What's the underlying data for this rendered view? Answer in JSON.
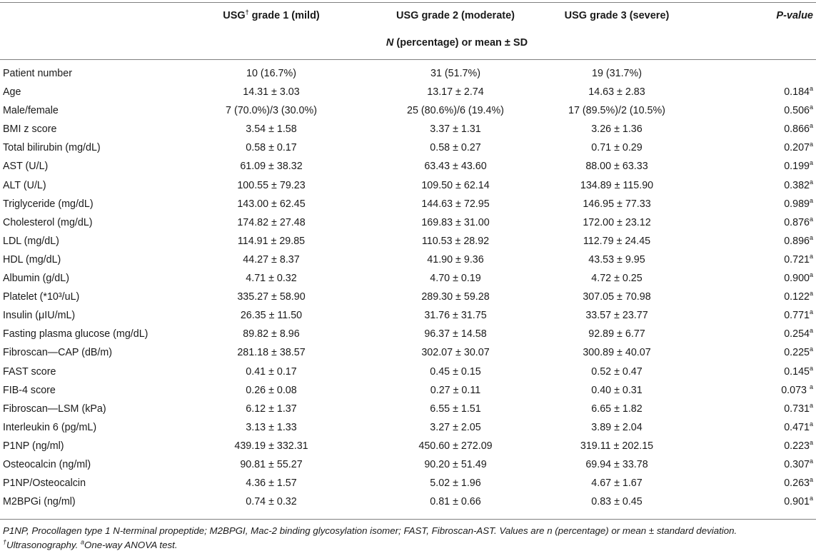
{
  "header": {
    "col1": "",
    "col2_prefix": "USG",
    "col2_dagger": "†",
    "col2_suffix": " grade 1 (mild)",
    "col3": "USG grade 2 (moderate)",
    "col4": "USG grade 3 (severe)",
    "col5": "P-value",
    "subheader_n": "N",
    "subheader_rest": " (percentage) or mean ± SD"
  },
  "rows": [
    {
      "label": "Patient number",
      "g1": "10 (16.7%)",
      "g2": "31 (51.7%)",
      "g3": "19 (31.7%)",
      "p": "",
      "sup": ""
    },
    {
      "label": "Age",
      "g1": "14.31 ± 3.03",
      "g2": "13.17 ± 2.74",
      "g3": "14.63 ± 2.83",
      "p": "0.184",
      "sup": "a"
    },
    {
      "label": "Male/female",
      "g1": "7 (70.0%)/3 (30.0%)",
      "g2": "25 (80.6%)/6 (19.4%)",
      "g3": "17 (89.5%)/2 (10.5%)",
      "p": "0.506",
      "sup": "a"
    },
    {
      "label": "BMI z score",
      "g1": "3.54 ± 1.58",
      "g2": "3.37 ± 1.31",
      "g3": "3.26 ± 1.36",
      "p": "0.866",
      "sup": "a"
    },
    {
      "label": "Total bilirubin (mg/dL)",
      "g1": "0.58 ± 0.17",
      "g2": "0.58 ± 0.27",
      "g3": "0.71 ± 0.29",
      "p": "0.207",
      "sup": "a"
    },
    {
      "label": "AST (U/L)",
      "g1": "61.09 ± 38.32",
      "g2": "63.43 ± 43.60",
      "g3": "88.00 ± 63.33",
      "p": "0.199",
      "sup": "a"
    },
    {
      "label": "ALT (U/L)",
      "g1": "100.55 ± 79.23",
      "g2": "109.50 ± 62.14",
      "g3": "134.89 ± 115.90",
      "p": "0.382",
      "sup": "a"
    },
    {
      "label": "Triglyceride (mg/dL)",
      "g1": "143.00 ± 62.45",
      "g2": "144.63 ± 72.95",
      "g3": "146.95 ± 77.33",
      "p": "0.989",
      "sup": "a"
    },
    {
      "label": "Cholesterol (mg/dL)",
      "g1": "174.82 ± 27.48",
      "g2": "169.83 ± 31.00",
      "g3": "172.00 ± 23.12",
      "p": "0.876",
      "sup": "a"
    },
    {
      "label": "LDL (mg/dL)",
      "g1": "114.91 ± 29.85",
      "g2": "110.53 ± 28.92",
      "g3": "112.79 ± 24.45",
      "p": "0.896",
      "sup": "a"
    },
    {
      "label": "HDL (mg/dL)",
      "g1": "44.27 ± 8.37",
      "g2": "41.90 ± 9.36",
      "g3": "43.53 ± 9.95",
      "p": "0.721",
      "sup": "a"
    },
    {
      "label": "Albumin (g/dL)",
      "g1": "4.71 ± 0.32",
      "g2": "4.70 ± 0.19",
      "g3": "4.72 ± 0.25",
      "p": "0.900",
      "sup": "a"
    },
    {
      "label": "Platelet (*10³/uL)",
      "g1": "335.27 ± 58.90",
      "g2": "289.30 ± 59.28",
      "g3": "307.05 ± 70.98",
      "p": "0.122",
      "sup": "a"
    },
    {
      "label": "Insulin (μIU/mL)",
      "g1": "26.35 ± 11.50",
      "g2": "31.76 ± 31.75",
      "g3": "33.57 ± 23.77",
      "p": "0.771",
      "sup": "a"
    },
    {
      "label": "Fasting plasma glucose (mg/dL)",
      "g1": "89.82 ± 8.96",
      "g2": "96.37 ± 14.58",
      "g3": "92.89 ± 6.77",
      "p": "0.254",
      "sup": "a"
    },
    {
      "label": "Fibroscan—CAP (dB/m)",
      "g1": "281.18 ± 38.57",
      "g2": "302.07 ± 30.07",
      "g3": "300.89 ± 40.07",
      "p": "0.225",
      "sup": "a"
    },
    {
      "label": "FAST score",
      "g1": "0.41 ± 0.17",
      "g2": "0.45 ± 0.15",
      "g3": "0.52 ± 0.47",
      "p": "0.145",
      "sup": "a"
    },
    {
      "label": "FIB-4 score",
      "g1": "0.26 ± 0.08",
      "g2": "0.27 ± 0.11",
      "g3": "0.40 ± 0.31",
      "p": "0.073 ",
      "sup": "a"
    },
    {
      "label": "Fibroscan—LSM (kPa)",
      "g1": "6.12 ± 1.37",
      "g2": "6.55 ± 1.51",
      "g3": "6.65 ± 1.82",
      "p": "0.731",
      "sup": "a"
    },
    {
      "label": "Interleukin 6 (pg/mL)",
      "g1": "3.13 ± 1.33",
      "g2": "3.27 ± 2.05",
      "g3": "3.89 ± 2.04",
      "p": "0.471",
      "sup": "a"
    },
    {
      "label": "P1NP (ng/ml)",
      "g1": "439.19 ± 332.31",
      "g2": "450.60 ± 272.09",
      "g3": "319.11 ± 202.15",
      "p": "0.223",
      "sup": "a"
    },
    {
      "label": "Osteocalcin (ng/ml)",
      "g1": "90.81 ± 55.27",
      "g2": "90.20 ± 51.49",
      "g3": "69.94 ± 33.78",
      "p": "0.307",
      "sup": "a"
    },
    {
      "label": "P1NP/Osteocalcin",
      "g1": "4.36 ± 1.57",
      "g2": "5.02 ± 1.96",
      "g3": "4.67 ± 1.67",
      "p": "0.263",
      "sup": "a"
    },
    {
      "label": "M2BPGi (ng/ml)",
      "g1": "0.74 ± 0.32",
      "g2": "0.81 ± 0.66",
      "g3": "0.83 ± 0.45",
      "p": "0.901",
      "sup": "a"
    }
  ],
  "footnotes": {
    "line1": "P1NP, Procollagen type 1 N-terminal propeptide; M2BPGI, Mac-2 binding glycosylation isomer; FAST, Fibroscan-AST. Values are n (percentage) or mean ± standard deviation.",
    "line2_dagger": "†",
    "line2_a": "Ultrasonography. ",
    "line2_sup": "a",
    "line2_b": "One-way ANOVA test."
  }
}
